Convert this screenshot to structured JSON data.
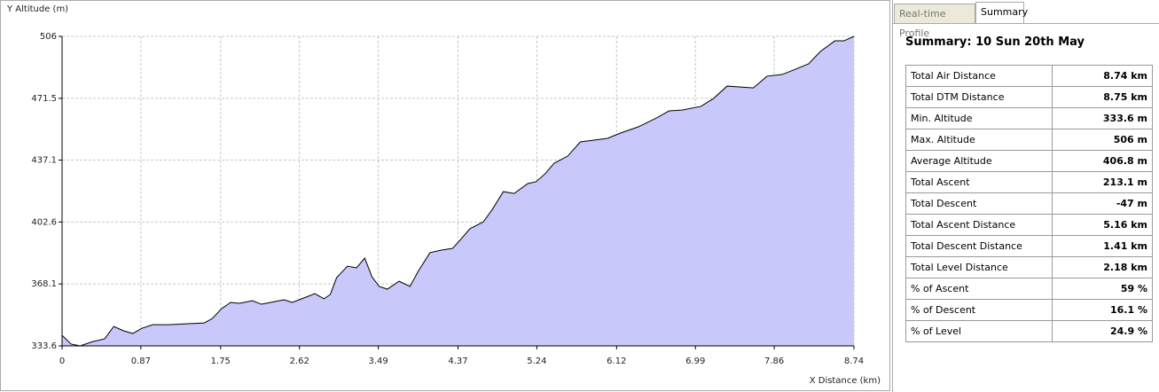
{
  "chart_data": {
    "type": "area",
    "y_label": "Y Altitude (m)",
    "x_label": "X Distance (km)",
    "color": "#c8c8fa",
    "line_color": "#000000",
    "grid": true,
    "xlim": [
      0,
      8.74
    ],
    "ylim": [
      333.6,
      506
    ],
    "xticks": [
      0,
      0.87,
      1.75,
      2.62,
      3.49,
      4.37,
      5.24,
      6.12,
      6.99,
      7.86,
      8.74
    ],
    "yticks": [
      333.6,
      368.1,
      402.6,
      437.1,
      471.5,
      506
    ],
    "x": [
      0,
      0.1,
      0.2,
      0.34,
      0.47,
      0.57,
      0.68,
      0.78,
      0.88,
      1.0,
      1.17,
      1.37,
      1.57,
      1.66,
      1.76,
      1.86,
      1.96,
      2.1,
      2.2,
      2.3,
      2.45,
      2.54,
      2.69,
      2.79,
      2.89,
      2.96,
      3.03,
      3.15,
      3.25,
      3.34,
      3.42,
      3.5,
      3.59,
      3.72,
      3.84,
      3.93,
      4.06,
      4.18,
      4.31,
      4.4,
      4.5,
      4.65,
      4.75,
      4.87,
      4.99,
      5.14,
      5.23,
      5.33,
      5.43,
      5.58,
      5.72,
      5.87,
      6.02,
      6.16,
      6.36,
      6.56,
      6.7,
      6.85,
      7.05,
      7.19,
      7.34,
      7.49,
      7.63,
      7.78,
      7.95,
      8.07,
      8.24,
      8.37,
      8.53,
      8.63,
      8.74
    ],
    "values": [
      339.5,
      334.6,
      333.6,
      336.0,
      337.5,
      344.4,
      342.0,
      340.5,
      343.4,
      345.4,
      345.4,
      345.9,
      346.4,
      348.9,
      354.3,
      357.8,
      357.3,
      358.8,
      356.8,
      357.8,
      359.3,
      357.8,
      360.7,
      362.7,
      359.8,
      362.2,
      371.6,
      378.0,
      377.1,
      382.5,
      372.1,
      366.7,
      365.2,
      369.6,
      366.7,
      375.1,
      385.5,
      386.9,
      387.9,
      392.9,
      398.8,
      402.7,
      409.7,
      419.5,
      418.5,
      424.0,
      425.0,
      429.4,
      435.3,
      439.3,
      447.2,
      448.2,
      449.2,
      452.1,
      455.6,
      460.5,
      464.5,
      465.0,
      467.0,
      471.4,
      478.3,
      477.8,
      477.3,
      483.8,
      484.8,
      487.2,
      490.7,
      497.6,
      503.5,
      503.5,
      506
    ]
  },
  "tabs": [
    "Real-time Profile",
    "Summary"
  ],
  "summary": {
    "title": "Summary: 10 Sun 20th May",
    "rows": [
      [
        "Total Air Distance",
        "8.74 km"
      ],
      [
        "Total DTM Distance",
        "8.75 km"
      ],
      [
        "Min. Altitude",
        "333.6 m"
      ],
      [
        "Max. Altitude",
        "506 m"
      ],
      [
        "Average Altitude",
        "406.8 m"
      ],
      [
        "Total Ascent",
        "213.1 m"
      ],
      [
        "Total Descent",
        "-47 m"
      ],
      [
        "Total Ascent Distance",
        "5.16 km"
      ],
      [
        "Total Descent Distance",
        "1.41 km"
      ],
      [
        "Total Level Distance",
        "2.18 km"
      ],
      [
        "% of Ascent",
        "59 %"
      ],
      [
        "% of Descent",
        "16.1 %"
      ],
      [
        "% of Level",
        "24.9 %"
      ]
    ]
  }
}
